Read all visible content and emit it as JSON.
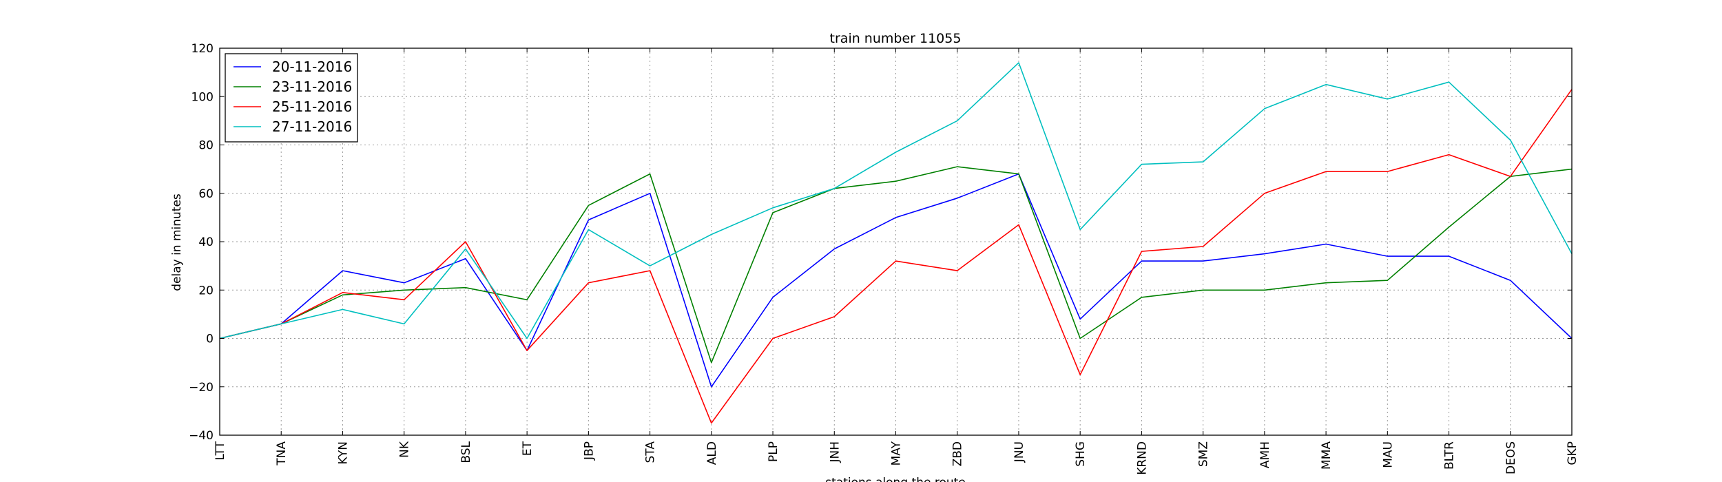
{
  "chart_data": {
    "type": "line",
    "title": "train number 11055",
    "xlabel": "stations along the route",
    "ylabel": "delay in minutes",
    "ylim": [
      -40,
      120
    ],
    "yticks": [
      -40,
      -20,
      0,
      20,
      40,
      60,
      80,
      100,
      120
    ],
    "grid": true,
    "legend_position": "top-left",
    "categories": [
      "LTT",
      "TNA",
      "KYN",
      "NK",
      "BSL",
      "ET",
      "JBP",
      "STA",
      "ALD",
      "PLP",
      "JNH",
      "MAY",
      "ZBD",
      "JNU",
      "SHG",
      "KRND",
      "SMZ",
      "AMH",
      "MMA",
      "MAU",
      "BLTR",
      "DEOS",
      "GKP"
    ],
    "series": [
      {
        "name": "20-11-2016",
        "color": "#0000ff",
        "values": [
          0,
          6,
          28,
          23,
          33,
          -5,
          49,
          60,
          -20,
          17,
          37,
          50,
          58,
          68,
          8,
          32,
          32,
          35,
          39,
          34,
          34,
          24,
          0
        ]
      },
      {
        "name": "23-11-2016",
        "color": "#008000",
        "values": [
          0,
          6,
          18,
          20,
          21,
          16,
          55,
          68,
          -10,
          52,
          62,
          65,
          71,
          68,
          0,
          17,
          20,
          20,
          23,
          24,
          46,
          67,
          70
        ]
      },
      {
        "name": "25-11-2016",
        "color": "#ff0000",
        "values": [
          0,
          6,
          19,
          16,
          40,
          -5,
          23,
          28,
          -35,
          0,
          9,
          32,
          28,
          47,
          -15,
          36,
          38,
          60,
          69,
          69,
          76,
          67,
          103
        ]
      },
      {
        "name": "27-11-2016",
        "color": "#00bfbf",
        "values": [
          0,
          6,
          12,
          6,
          37,
          0,
          45,
          30,
          43,
          54,
          62,
          77,
          90,
          114,
          45,
          72,
          73,
          95,
          105,
          99,
          106,
          82,
          35
        ]
      }
    ]
  }
}
